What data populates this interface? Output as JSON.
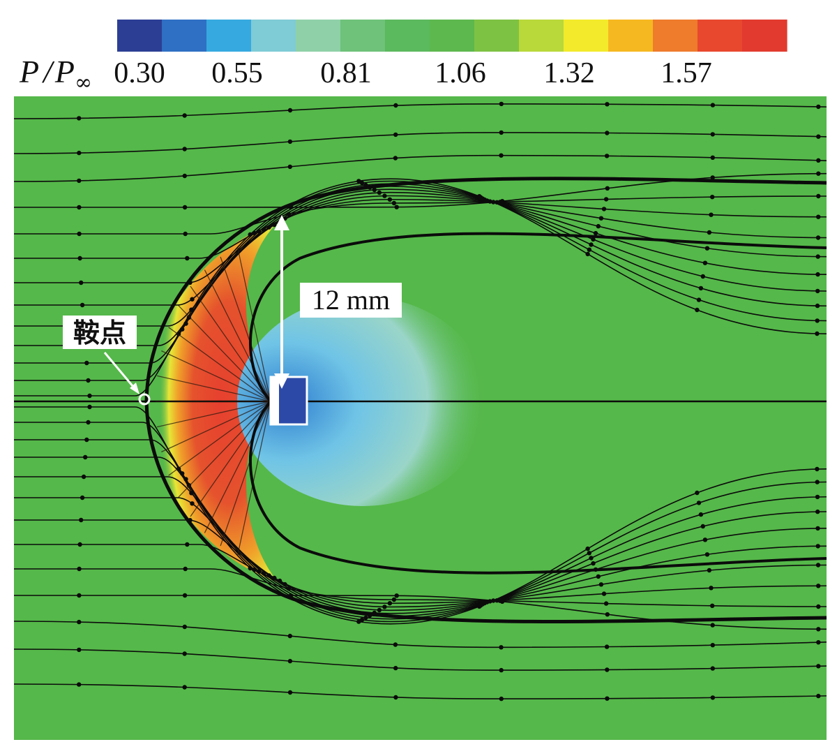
{
  "colorbar": {
    "variable": "P / P",
    "variable_main": "P",
    "variable_sep": "/",
    "variable_den": "P",
    "variable_sub": "∞",
    "ticks": [
      "0.30",
      "0.55",
      "0.81",
      "1.06",
      "1.32",
      "1.57"
    ],
    "range": [
      0.3,
      1.7
    ],
    "colors": [
      "#2c3e94",
      "#2f6fc4",
      "#36a9e0",
      "#7fcbd6",
      "#8fd0a8",
      "#6ec27a",
      "#5bb95e",
      "#5db84e",
      "#7ec244",
      "#b9d83a",
      "#f3ea2c",
      "#f6b820",
      "#ef7b2c",
      "#e8482e",
      "#e23a2f"
    ]
  },
  "annotations": {
    "dimension": "12 mm",
    "saddle_point": "鞍点"
  },
  "field": {
    "background": "#55b84a",
    "streamline": "#0b0b0b"
  }
}
